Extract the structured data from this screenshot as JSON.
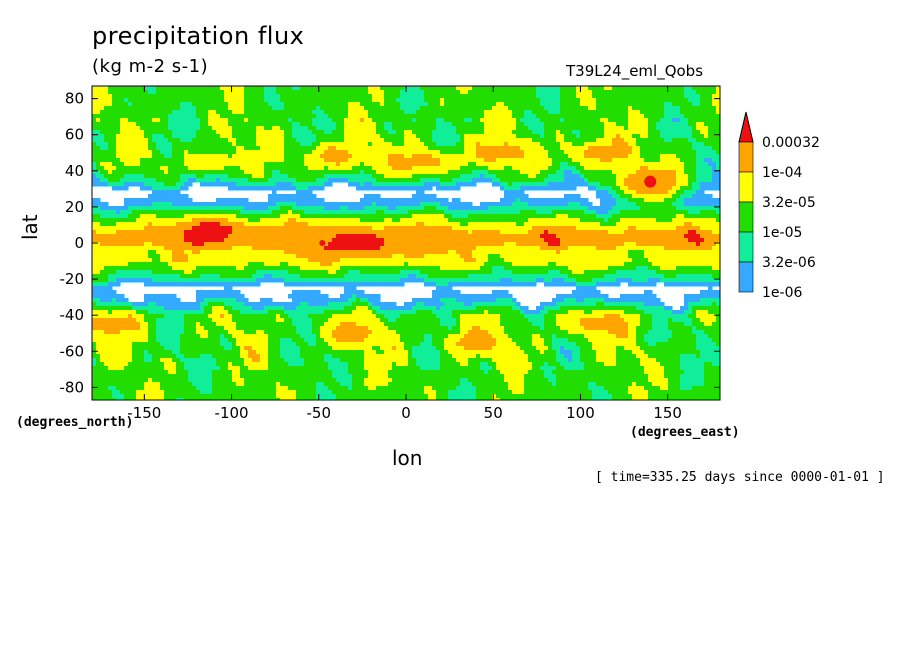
{
  "title": "precipitation flux",
  "units": "(kg m-2 s-1)",
  "run_label": "T39L24_eml_Qobs",
  "time_label": "[ time=335.25 days since 0000-01-01 ]",
  "colors": {
    "lt_1e-06": "#ffffff",
    "1e-06_3.2e-06": "#33aaff",
    "3.2e-06_1e-05": "#11ee99",
    "1e-05_3.2e-05": "#22dd00",
    "3.2e-05_1e-04": "#ffff00",
    "1e-04_3.2e-04": "#ffa500",
    "gt_3.2e-04": "#ee1111"
  },
  "chart_data": {
    "type": "heatmap",
    "title": "precipitation flux",
    "subtitle": "(kg m-2 s-1)",
    "xlabel": "lon",
    "ylabel": "lat",
    "x_unit": "(degrees_east)",
    "y_unit": "(degrees_north)",
    "xlim": [
      -180,
      180
    ],
    "ylim": [
      -87,
      87
    ],
    "x_ticks": [
      -150,
      -100,
      -50,
      0,
      50,
      100,
      150
    ],
    "y_ticks": [
      80,
      60,
      40,
      20,
      0,
      -20,
      -40,
      -60,
      -80
    ],
    "legend": {
      "position": "right",
      "levels": [
        "1e-06",
        "3.2e-06",
        "1e-05",
        "3.2e-05",
        "1e-04",
        "0.00032"
      ]
    },
    "latitude_profile": [
      {
        "lat": 87,
        "level": 3
      },
      {
        "lat": 80,
        "level": 3
      },
      {
        "lat": 70,
        "level": 3
      },
      {
        "lat": 60,
        "level": 3
      },
      {
        "lat": 50,
        "level": 3
      },
      {
        "lat": 42,
        "level": 3
      },
      {
        "lat": 35,
        "level": 2
      },
      {
        "lat": 28,
        "level": 0
      },
      {
        "lat": 22,
        "level": 1
      },
      {
        "lat": 15,
        "level": 3
      },
      {
        "lat": 10,
        "level": 4
      },
      {
        "lat": 5,
        "level": 5
      },
      {
        "lat": 0,
        "level": 5
      },
      {
        "lat": -5,
        "level": 4
      },
      {
        "lat": -10,
        "level": 4
      },
      {
        "lat": -15,
        "level": 3
      },
      {
        "lat": -20,
        "level": 2
      },
      {
        "lat": -25,
        "level": 0
      },
      {
        "lat": -32,
        "level": 1
      },
      {
        "lat": -40,
        "level": 3
      },
      {
        "lat": -50,
        "level": 3
      },
      {
        "lat": -60,
        "level": 3
      },
      {
        "lat": -70,
        "level": 3
      },
      {
        "lat": -80,
        "level": 3
      },
      {
        "lat": -87,
        "level": 3
      }
    ],
    "features": [
      {
        "lon": -20,
        "lat": 0,
        "level": 6
      },
      {
        "lon": 140,
        "lat": 34,
        "level": 6
      },
      {
        "lon": -110,
        "lat": 7,
        "level": 6
      },
      {
        "lon": -48,
        "lat": 0,
        "level": 6
      },
      {
        "lon": 10,
        "lat": 0,
        "level": 5
      },
      {
        "lon": -60,
        "lat": 2,
        "level": 5
      },
      {
        "lon": 140,
        "lat": 30,
        "level": 5
      },
      {
        "lon": -40,
        "lat": 48,
        "level": 5
      },
      {
        "lon": 10,
        "lat": 45,
        "level": 5
      },
      {
        "lon": 55,
        "lat": 50,
        "level": 5
      },
      {
        "lon": 110,
        "lat": 50,
        "level": 5
      },
      {
        "lon": -110,
        "lat": 45,
        "level": 4
      },
      {
        "lon": -30,
        "lat": -50,
        "level": 5
      },
      {
        "lon": 40,
        "lat": -55,
        "level": 5
      },
      {
        "lon": 110,
        "lat": -45,
        "level": 5
      },
      {
        "lon": -170,
        "lat": -45,
        "level": 5
      }
    ]
  }
}
